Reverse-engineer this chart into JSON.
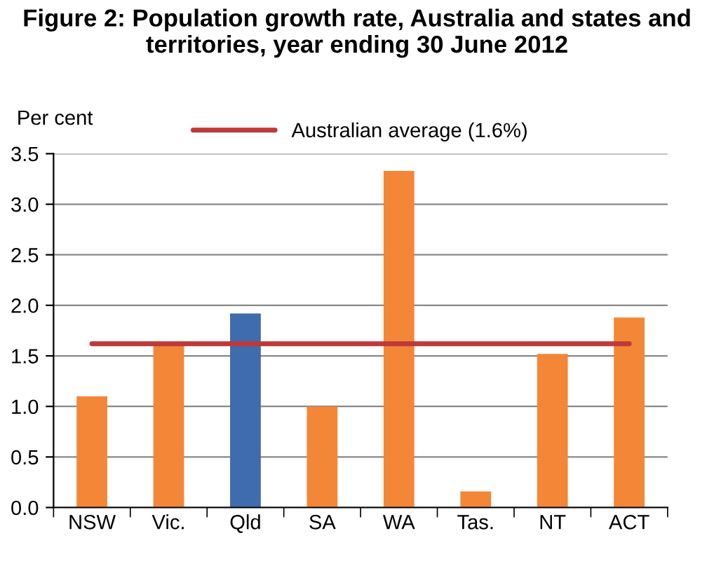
{
  "chart_data": {
    "type": "bar",
    "title": "Figure 2: Population growth rate, Australia and states and territories, year ending 30 June 2012",
    "ylabel": "Per cent",
    "categories": [
      "NSW",
      "Vic.",
      "Qld",
      "SA",
      "WA",
      "Tas.",
      "NT",
      "ACT"
    ],
    "series": [
      {
        "colors": [
          "#f38737",
          "#f38737",
          "#3e6cad",
          "#f38737",
          "#f38737",
          "#f38737",
          "#f38737",
          "#f38737"
        ],
        "values": [
          1.1,
          1.62,
          1.92,
          1.0,
          3.33,
          0.16,
          1.52,
          1.88
        ]
      },
      {
        "type": "line",
        "name": "Australian average (1.6%)",
        "color": "#be3a3a",
        "values": [
          1.62,
          1.62,
          1.62,
          1.62,
          1.62,
          1.62,
          1.62,
          1.62
        ]
      }
    ],
    "ylim": [
      0,
      3.5
    ],
    "yticks": [
      {
        "value": 0,
        "label": "0.0"
      },
      0.5,
      {
        "value": 1,
        "label": "1.0"
      },
      1.5,
      {
        "value": 2,
        "label": "2.0"
      },
      2.5,
      {
        "value": 3,
        "label": "3.0"
      },
      3.5
    ],
    "grid": "y",
    "legend": "top"
  }
}
